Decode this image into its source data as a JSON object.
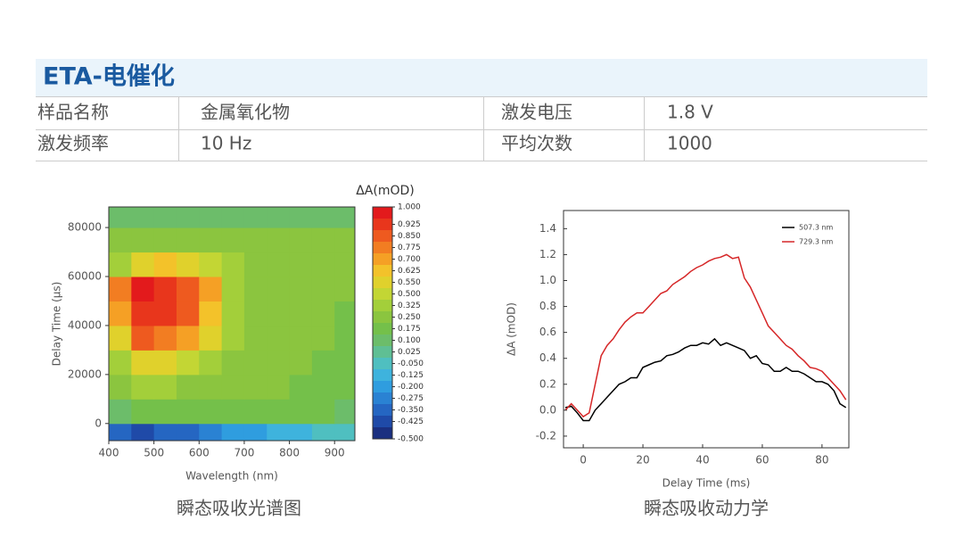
{
  "header": {
    "title": "ETA-电催化"
  },
  "table": {
    "rows": [
      [
        "样品名称",
        "金属氧化物",
        "激发电压",
        "1.8 V"
      ],
      [
        "激发频率",
        "10 Hz",
        "平均次数",
        "1000"
      ]
    ]
  },
  "chart_data": [
    {
      "type": "heatmap",
      "caption": "瞬态吸收光谱图",
      "x_label": "Wavelength (nm)",
      "y_label": "Delay Time  (μs)",
      "xlim": [
        400,
        945
      ],
      "ylim": [
        -7000,
        88400
      ],
      "xticks": [
        400,
        500,
        600,
        700,
        800,
        900
      ],
      "yticks": [
        0,
        20000,
        40000,
        60000,
        80000
      ],
      "x": [
        425,
        475,
        525,
        575,
        625,
        675,
        725,
        775,
        825,
        875,
        925
      ],
      "y": [
        -5000,
        5000,
        15000,
        25000,
        35000,
        45000,
        55000,
        65000,
        75000,
        85000
      ],
      "z": [
        [
          -0.35,
          -0.4,
          -0.35,
          -0.3,
          -0.25,
          -0.2,
          -0.15,
          -0.1,
          -0.1,
          -0.05,
          -0.05
        ],
        [
          0.15,
          0.2,
          0.2,
          0.2,
          0.2,
          0.2,
          0.2,
          0.2,
          0.2,
          0.2,
          0.15
        ],
        [
          0.3,
          0.4,
          0.35,
          0.3,
          0.3,
          0.25,
          0.25,
          0.25,
          0.2,
          0.2,
          0.2
        ],
        [
          0.45,
          0.6,
          0.6,
          0.5,
          0.4,
          0.3,
          0.25,
          0.25,
          0.25,
          0.2,
          0.2
        ],
        [
          0.6,
          0.85,
          0.8,
          0.7,
          0.55,
          0.4,
          0.3,
          0.25,
          0.25,
          0.25,
          0.2
        ],
        [
          0.75,
          0.95,
          0.95,
          0.85,
          0.65,
          0.45,
          0.3,
          0.25,
          0.25,
          0.25,
          0.2
        ],
        [
          0.8,
          1.0,
          0.95,
          0.85,
          0.7,
          0.45,
          0.3,
          0.25,
          0.25,
          0.25,
          0.25
        ],
        [
          0.45,
          0.6,
          0.65,
          0.6,
          0.5,
          0.35,
          0.3,
          0.25,
          0.25,
          0.25,
          0.25
        ],
        [
          0.25,
          0.3,
          0.3,
          0.3,
          0.3,
          0.25,
          0.25,
          0.25,
          0.25,
          0.25,
          0.25
        ],
        [
          0.1,
          0.15,
          0.15,
          0.15,
          0.15,
          0.15,
          0.15,
          0.15,
          0.15,
          0.15,
          0.15
        ]
      ],
      "colorbar": {
        "title": "ΔA(mOD)",
        "levels": [
          {
            "value": 1,
            "label": "1.000"
          },
          {
            "value": 0.925,
            "label": "0.925"
          },
          {
            "value": 0.85,
            "label": "0.850"
          },
          {
            "value": 0.775,
            "label": "0.775"
          },
          {
            "value": 0.7,
            "label": "0.700"
          },
          {
            "value": 0.625,
            "label": "0.625"
          },
          {
            "value": 0.55,
            "label": "0.550"
          },
          {
            "value": 0.5,
            "label": "0.500"
          },
          {
            "value": 0.325,
            "label": "0.325"
          },
          {
            "value": 0.25,
            "label": "0.250"
          },
          {
            "value": 0.175,
            "label": "0.175"
          },
          {
            "value": 0.1,
            "label": "0.100"
          },
          {
            "value": 0.025,
            "label": "0.025"
          },
          {
            "value": -0.05,
            "label": "-0.050"
          },
          {
            "value": -0.125,
            "label": "-0.125"
          },
          {
            "value": -0.2,
            "label": "-0.200"
          },
          {
            "value": -0.275,
            "label": "-0.275"
          },
          {
            "value": -0.35,
            "label": "-0.350"
          },
          {
            "value": -0.425,
            "label": "-0.425"
          },
          {
            "value": -0.5,
            "label": "-0.500"
          }
        ],
        "colors": [
          "#e31a1c",
          "#e8361c",
          "#ee5a1f",
          "#f27d22",
          "#f5a025",
          "#f3c22a",
          "#e0d12c",
          "#c3d634",
          "#a3cf3a",
          "#8bc53f",
          "#74c04a",
          "#6cbd6a",
          "#5fbf94",
          "#4fbfc0",
          "#3eb3dd",
          "#2f9ddf",
          "#2a82d3",
          "#2566c2",
          "#1f4aa8",
          "#1a2f80"
        ]
      }
    },
    {
      "type": "line",
      "caption": "瞬态吸收动力学",
      "x_label": "Delay Time (ms)",
      "y_label": "ΔA (mOD)",
      "xlim": [
        -6.6,
        89
      ],
      "ylim": [
        -0.29,
        1.54
      ],
      "xticks": [
        0,
        20,
        40,
        60,
        80
      ],
      "yticks": [
        -0.2,
        {
          "value": 0,
          "label": "0.0"
        },
        0.2,
        0.4,
        0.6,
        0.8,
        {
          "value": 1,
          "label": "1.0"
        },
        1.2,
        1.4
      ],
      "legend": "upper right",
      "x": [
        -6,
        -4,
        -2,
        0,
        2,
        4,
        6,
        8,
        10,
        12,
        14,
        16,
        18,
        20,
        22,
        24,
        26,
        28,
        30,
        32,
        34,
        36,
        38,
        40,
        42,
        44,
        46,
        48,
        50,
        52,
        54,
        56,
        58,
        60,
        62,
        64,
        66,
        68,
        70,
        72,
        74,
        76,
        78,
        80,
        82,
        84,
        86,
        88
      ],
      "series": [
        {
          "name": "507.3 nm",
          "color": "#000000",
          "values": [
            0.02,
            0.03,
            -0.02,
            -0.08,
            -0.08,
            0.0,
            0.05,
            0.1,
            0.15,
            0.2,
            0.22,
            0.25,
            0.25,
            0.33,
            0.35,
            0.37,
            0.38,
            0.42,
            0.43,
            0.45,
            0.48,
            0.5,
            0.5,
            0.52,
            0.51,
            0.55,
            0.5,
            0.52,
            0.5,
            0.48,
            0.46,
            0.4,
            0.42,
            0.36,
            0.35,
            0.3,
            0.3,
            0.33,
            0.3,
            0.3,
            0.28,
            0.25,
            0.22,
            0.22,
            0.2,
            0.15,
            0.05,
            0.02
          ]
        },
        {
          "name": "729.3 nm",
          "color": "#d62728",
          "values": [
            0.0,
            0.05,
            0.0,
            -0.05,
            -0.02,
            0.2,
            0.42,
            0.5,
            0.55,
            0.62,
            0.68,
            0.72,
            0.75,
            0.75,
            0.8,
            0.85,
            0.9,
            0.92,
            0.97,
            1.0,
            1.03,
            1.07,
            1.1,
            1.12,
            1.15,
            1.17,
            1.18,
            1.2,
            1.17,
            1.18,
            1.02,
            0.95,
            0.85,
            0.75,
            0.65,
            0.6,
            0.55,
            0.5,
            0.47,
            0.42,
            0.38,
            0.33,
            0.32,
            0.3,
            0.25,
            0.2,
            0.15,
            0.08
          ]
        }
      ]
    }
  ]
}
